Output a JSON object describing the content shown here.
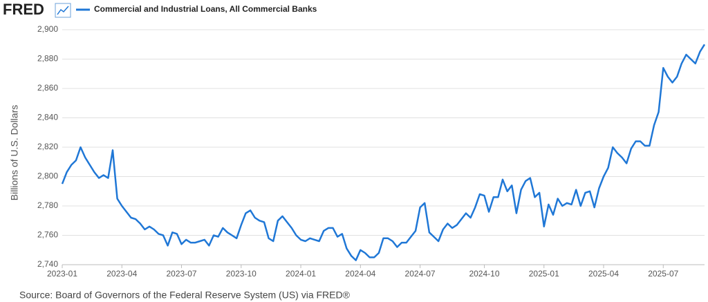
{
  "brand": "FRED",
  "source": "Source: Board of Governors of the Federal Reserve System (US) via FRED®",
  "chart_data": {
    "type": "line",
    "y_label": "Billions of U.S. Dollars",
    "categories": [
      "2023-01",
      null,
      null,
      null,
      null,
      null,
      null,
      null,
      null,
      null,
      null,
      null,
      null,
      "2023-04",
      null,
      null,
      null,
      null,
      null,
      null,
      null,
      null,
      null,
      null,
      null,
      null,
      "2023-07",
      null,
      null,
      null,
      null,
      null,
      null,
      null,
      null,
      null,
      null,
      null,
      null,
      "2023-10",
      null,
      null,
      null,
      null,
      null,
      null,
      null,
      null,
      null,
      null,
      null,
      null,
      "2024-01",
      null,
      null,
      null,
      null,
      null,
      null,
      null,
      null,
      null,
      null,
      null,
      null,
      "2024-04",
      null,
      null,
      null,
      null,
      null,
      null,
      null,
      null,
      null,
      null,
      null,
      null,
      "2024-07",
      null,
      null,
      null,
      null,
      null,
      null,
      null,
      null,
      null,
      null,
      null,
      null,
      null,
      "2024-10",
      null,
      null,
      null,
      null,
      null,
      null,
      null,
      null,
      null,
      null,
      null,
      null,
      "2025-01",
      null,
      null,
      null,
      null,
      null,
      null,
      null,
      null,
      null,
      null,
      null,
      null,
      "2025-04",
      null,
      null,
      null,
      null,
      null,
      null,
      null,
      null,
      null,
      null,
      null,
      null,
      "2025-07",
      null,
      null,
      null,
      null,
      null,
      null,
      null,
      null,
      null
    ],
    "series": [
      {
        "name": "Commercial and Industrial Loans, All Commercial Banks",
        "color": "#1f77d6",
        "values": [
          2795,
          2803,
          2808,
          2811,
          2820,
          2813,
          2808,
          2803,
          2799,
          2801,
          2799,
          2818,
          2785,
          2780,
          2776,
          2772,
          2771,
          2768,
          2764,
          2766,
          2764,
          2761,
          2760,
          2753,
          2762,
          2761,
          2754,
          2757,
          2755,
          2755,
          2756,
          2757,
          2753,
          2760,
          2759,
          2765,
          2762,
          2760,
          2758,
          2767,
          2775,
          2777,
          2772,
          2770,
          2769,
          2758,
          2756,
          2770,
          2773,
          2769,
          2765,
          2760,
          2757,
          2756,
          2758,
          2757,
          2756,
          2763,
          2765,
          2765,
          2759,
          2761,
          2751,
          2746,
          2743,
          2750,
          2748,
          2745,
          2745,
          2748,
          2758,
          2758,
          2756,
          2752,
          2755,
          2755,
          2759,
          2763,
          2779,
          2782,
          2762,
          2759,
          2756,
          2764,
          2768,
          2765,
          2767,
          2771,
          2775,
          2772,
          2779,
          2788,
          2787,
          2776,
          2786,
          2786,
          2798,
          2790,
          2794,
          2775,
          2791,
          2797,
          2799,
          2786,
          2789,
          2766,
          2781,
          2774,
          2785,
          2780,
          2782,
          2781,
          2791,
          2780,
          2789,
          2790,
          2779,
          2792,
          2800,
          2806,
          2820,
          2816,
          2813,
          2809,
          2819,
          2824,
          2824,
          2821,
          2821,
          2835,
          2844,
          2874,
          2868,
          2864,
          2868,
          2877,
          2883,
          2880,
          2877,
          2885,
          2890
        ]
      }
    ],
    "ylim": [
      2740,
      2900
    ],
    "yticks": [
      {
        "value": 2740,
        "label": "2,740"
      },
      {
        "value": 2760,
        "label": "2,760"
      },
      {
        "value": 2780,
        "label": "2,780"
      },
      {
        "value": 2800,
        "label": "2,800"
      },
      {
        "value": 2820,
        "label": "2,820"
      },
      {
        "value": 2840,
        "label": "2,840"
      },
      {
        "value": 2860,
        "label": "2,860"
      },
      {
        "value": 2880,
        "label": "2,880"
      },
      {
        "value": 2900,
        "label": "2,900"
      }
    ],
    "grid": true
  }
}
